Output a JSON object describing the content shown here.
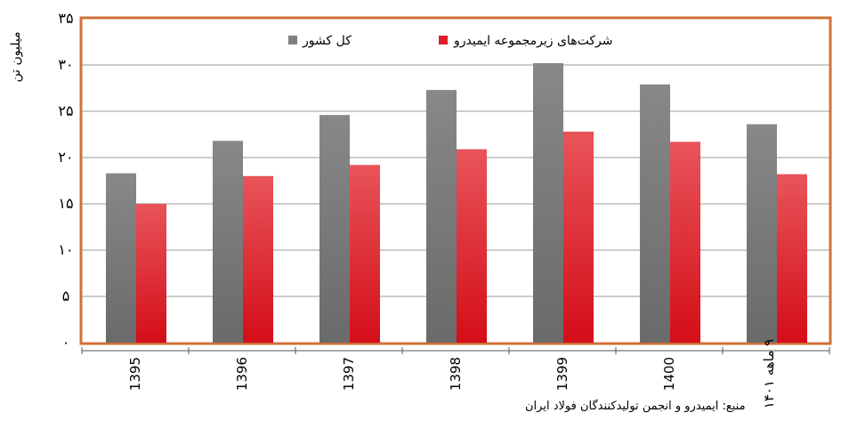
{
  "chart_data": {
    "type": "bar",
    "title": "",
    "ylabel": "میلیون تن",
    "xlabel": "",
    "ylim": [
      0,
      35
    ],
    "y_ticks": [
      0,
      5,
      10,
      15,
      20,
      25,
      30,
      35
    ],
    "y_tick_labels": [
      "۰",
      "۵",
      "۱۰",
      "۱۵",
      "۲۰",
      "۲۵",
      "۳۰",
      "۳۵"
    ],
    "categories": [
      "1395",
      "1396",
      "1397",
      "1398",
      "1399",
      "1400",
      "۹ ماهه ۱۴۰۱"
    ],
    "series": [
      {
        "name": "کل کشور",
        "color": "#7f7f7f",
        "values": [
          18.3,
          21.8,
          24.6,
          27.3,
          30.2,
          27.9,
          23.6
        ]
      },
      {
        "name": "شرکت‌های زیرمجموعه ایمیدرو",
        "color": "#e0202a",
        "values": [
          15.0,
          18.0,
          19.2,
          20.9,
          22.8,
          21.7,
          18.2
        ]
      }
    ],
    "grid": true,
    "legend_position": "top",
    "frame_color": "#d0703a"
  },
  "source_text": "منبع: ایمیدرو و انجمن تولیدکنندگان فولاد ایران"
}
